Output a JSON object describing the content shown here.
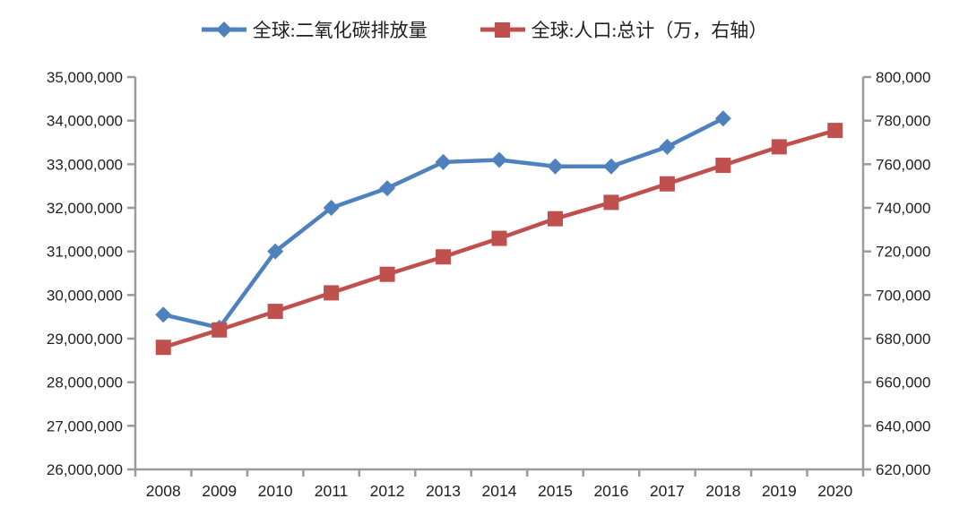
{
  "chart_data": {
    "type": "line",
    "title": "",
    "xlabel": "",
    "ylabel": "",
    "grid": false,
    "legend_position": "top",
    "categories": [
      "2008",
      "2009",
      "2010",
      "2011",
      "2012",
      "2013",
      "2014",
      "2015",
      "2016",
      "2017",
      "2018",
      "2019",
      "2020"
    ],
    "series": [
      {
        "name": "全球:二氧化碳排放量",
        "axis": "left",
        "color": "#4F81BD",
        "marker": "diamond",
        "values": [
          29550000,
          29250000,
          31000000,
          32000000,
          32450000,
          33050000,
          33100000,
          32950000,
          32950000,
          33400000,
          34050000,
          null,
          null
        ]
      },
      {
        "name": "全球:人口:总计（万，右轴）",
        "axis": "right",
        "color": "#C0504D",
        "marker": "square",
        "values": [
          676000,
          684000,
          692500,
          701000,
          709500,
          717500,
          726000,
          735000,
          742500,
          751000,
          759500,
          768000,
          775500
        ]
      }
    ],
    "left_axis": {
      "min": 26000000,
      "max": 35000000,
      "step": 1000000
    },
    "right_axis": {
      "min": 620000,
      "max": 800000,
      "step": 20000
    },
    "axis_color": "#9b9b9b",
    "text_color": "#1f1f1f"
  }
}
